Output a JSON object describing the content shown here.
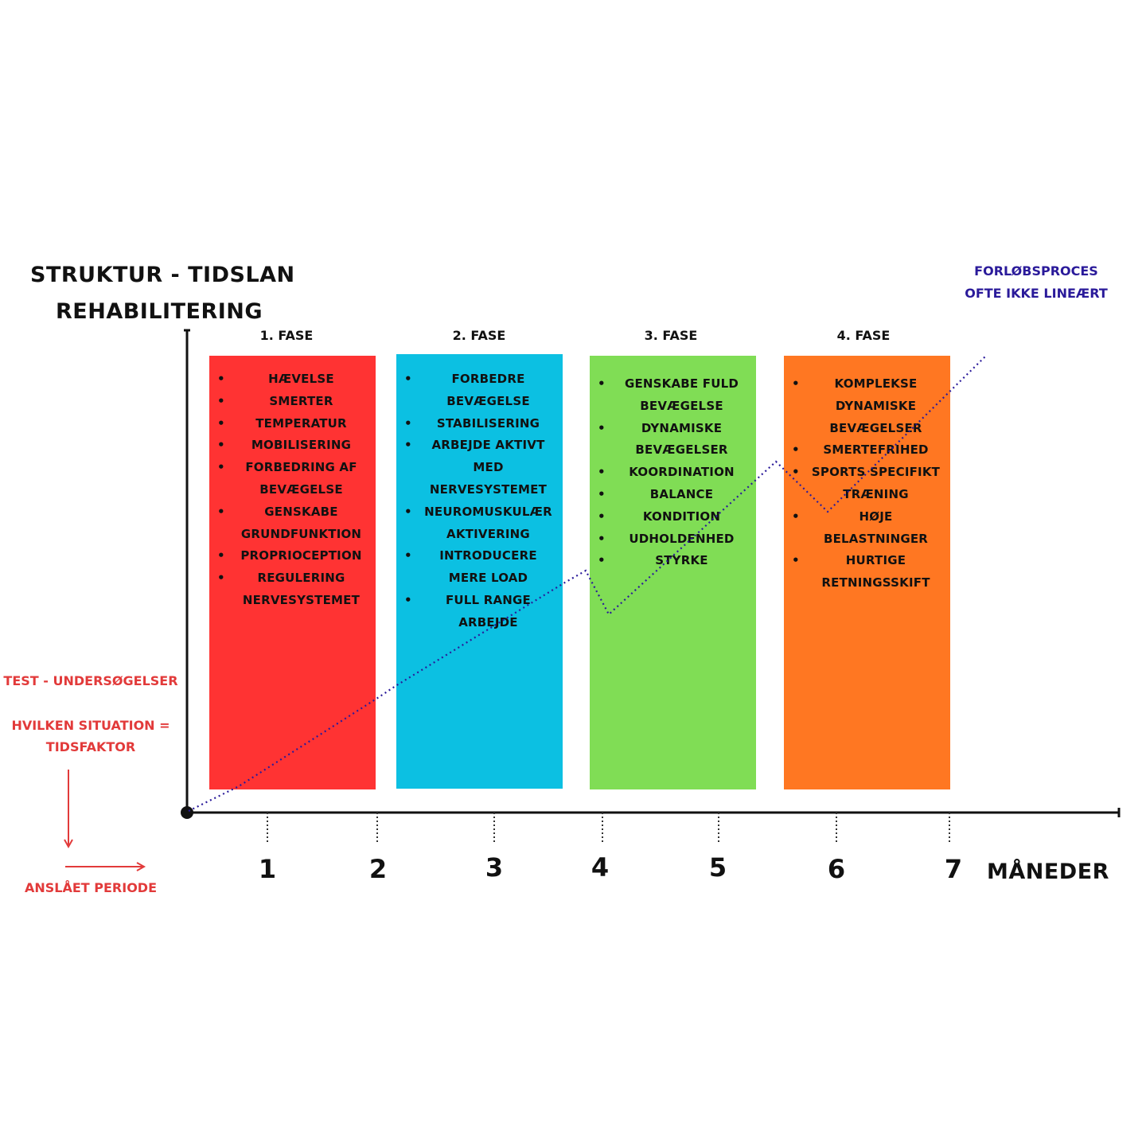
{
  "title": {
    "line1": "STRUKTUR - TIDSLAN",
    "line2": "REHABILITERING"
  },
  "note_top_right": {
    "line1": "FORLØBSPROCES",
    "line2": "OFTE IKKE LINEÆRT",
    "color": "#2a1a9a"
  },
  "note_left": {
    "line1": "TEST - UNDERSØGELSER",
    "line2": "HVILKEN SITUATION =",
    "line3": "TIDSFAKTOR",
    "line4": "ANSLÅET PERIODE",
    "color": "#e23a3a"
  },
  "x_axis": {
    "unit_label": "MÅNEDER",
    "ticks": [
      "1",
      "2",
      "3",
      "4",
      "5",
      "6",
      "7"
    ]
  },
  "phases": [
    {
      "label": "1. FASE",
      "color": "#ff3333",
      "items": [
        [
          "HÆVELSE"
        ],
        [
          "SMERTER"
        ],
        [
          "TEMPERATUR"
        ],
        [
          "MOBILISERING"
        ],
        [
          "FORBEDRING AF",
          "BEVÆGELSE"
        ],
        [
          "GENSKABE",
          "GRUNDFUNKTION"
        ],
        [
          "PROPRIOCEPTION"
        ],
        [
          "REGULERING",
          "NERVESYSTEMET"
        ]
      ]
    },
    {
      "label": "2. FASE",
      "color": "#0cc0e2",
      "items": [
        [
          "FORBEDRE",
          "BEVÆGELSE"
        ],
        [
          "STABILISERING"
        ],
        [
          "ARBEJDE AKTIVT",
          "MED",
          "NERVESYSTEMET"
        ],
        [
          "NEUROMUSKULÆR",
          "AKTIVERING"
        ],
        [
          "INTRODUCERE",
          "MERE LOAD"
        ],
        [
          "FULL RANGE",
          "ARBEJDE"
        ]
      ]
    },
    {
      "label": "3. FASE",
      "color": "#80dd55",
      "items": [
        [
          "GENSKABE FULD",
          "BEVÆGELSE"
        ],
        [
          "DYNAMISKE",
          "BEVÆGELSER"
        ],
        [
          "KOORDINATION"
        ],
        [
          "BALANCE"
        ],
        [
          "KONDITION"
        ],
        [
          "UDHOLDENHED"
        ],
        [
          "STYRKE"
        ]
      ]
    },
    {
      "label": "4. FASE",
      "color": "#ff7722",
      "items": [
        [
          "KOMPLEKSE",
          "DYNAMISKE",
          "BEVÆGELSER"
        ],
        [
          "SMERTEFRIHED"
        ],
        [
          "SPORTS SPECIFIKT",
          "TRÆNING"
        ],
        [
          "HØJE",
          "BELASTNINGER"
        ],
        [
          "HURTIGE",
          "RETNINGSSKIFT"
        ]
      ]
    }
  ],
  "line_color": "#2a1a9a"
}
